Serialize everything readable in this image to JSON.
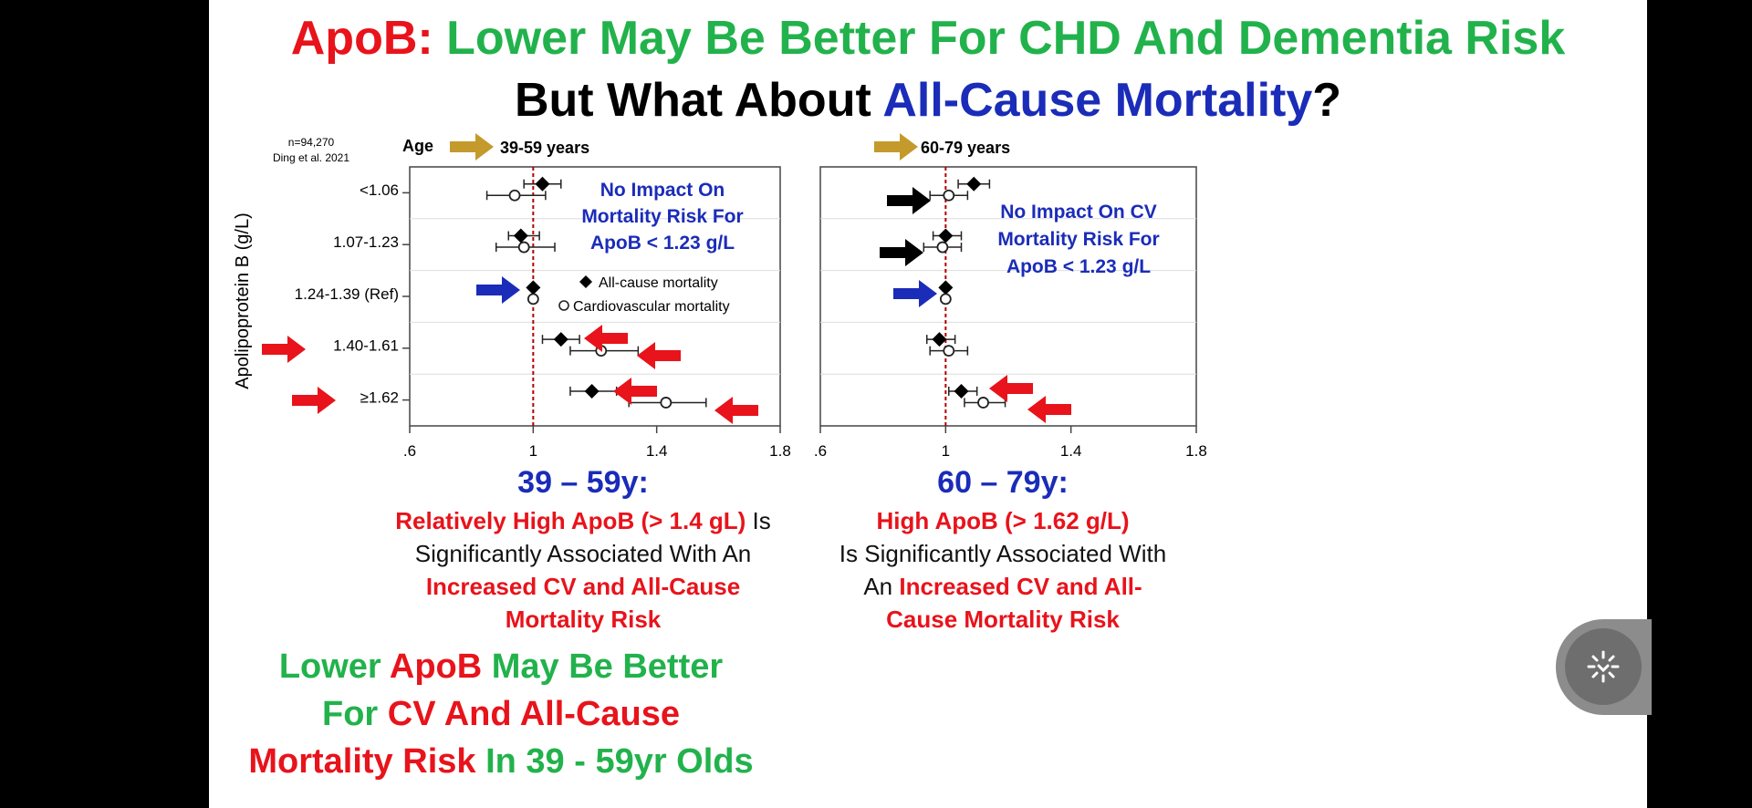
{
  "title": {
    "line1_part1": "ApoB:",
    "line1_part2": "Lower May Be Better For CHD And Dementia Risk",
    "line2_part1": "But What About",
    "line2_part2": "All-Cause Mortality",
    "line2_part3": "?"
  },
  "colors": {
    "red": "#e8131b",
    "green": "#22b24c",
    "blue": "#1a2cb8",
    "gold": "#c49a2c"
  },
  "study_note": {
    "n": "n=94,270",
    "ref": "Ding et al. 2021"
  },
  "age_label": "Age",
  "ylabel": "Apolipoprotein B (g/L)",
  "row_labels": [
    "<1.06",
    "1.07-1.23",
    "1.24-1.39 (Ref)",
    "1.40-1.61",
    "≥1.62"
  ],
  "legend": {
    "allcause": "All-cause mortality",
    "cv": "Cardiovascular mortality"
  },
  "chart_data": [
    {
      "type": "scatter",
      "title": "39-59 years",
      "categories": [
        "<1.06",
        "1.07-1.23",
        "1.24-1.39 (Ref)",
        "1.40-1.61",
        "≥1.62"
      ],
      "series": [
        {
          "name": "All-cause mortality",
          "marker": "filled-diamond",
          "values": [
            1.03,
            0.96,
            1.0,
            1.09,
            1.19
          ],
          "ci_low": [
            0.97,
            0.92,
            1.0,
            1.03,
            1.12
          ],
          "ci_high": [
            1.09,
            1.02,
            1.0,
            1.15,
            1.27
          ]
        },
        {
          "name": "Cardiovascular mortality",
          "marker": "open-circle",
          "values": [
            0.94,
            0.97,
            1.0,
            1.22,
            1.43
          ],
          "ci_low": [
            0.85,
            0.88,
            1.0,
            1.12,
            1.31
          ],
          "ci_high": [
            1.04,
            1.07,
            1.0,
            1.34,
            1.56
          ]
        }
      ],
      "xlim": [
        0.6,
        1.8
      ],
      "xticks": [
        ".6",
        "1",
        "1.4",
        "1.8"
      ],
      "reference_line": 1,
      "annotation": "No Impact On Mortality Risk For ApoB < 1.23 g/L"
    },
    {
      "type": "scatter",
      "title": "60-79 years",
      "categories": [
        "<1.06",
        "1.07-1.23",
        "1.24-1.39 (Ref)",
        "1.40-1.61",
        "≥1.62"
      ],
      "series": [
        {
          "name": "All-cause mortality",
          "marker": "filled-diamond",
          "values": [
            1.09,
            1.0,
            1.0,
            0.98,
            1.05
          ],
          "ci_low": [
            1.04,
            0.96,
            1.0,
            0.94,
            1.01
          ],
          "ci_high": [
            1.14,
            1.05,
            1.0,
            1.03,
            1.1
          ]
        },
        {
          "name": "Cardiovascular mortality",
          "marker": "open-circle",
          "values": [
            1.01,
            0.99,
            1.0,
            1.01,
            1.12
          ],
          "ci_low": [
            0.95,
            0.93,
            1.0,
            0.95,
            1.06
          ],
          "ci_high": [
            1.07,
            1.05,
            1.0,
            1.07,
            1.19
          ]
        }
      ],
      "xlim": [
        0.6,
        1.8
      ],
      "xticks": [
        ".6",
        "1",
        "1.4",
        "1.8"
      ],
      "reference_line": 1,
      "annotation": "No Impact On CV Mortality Risk For ApoB < 1.23 g/L"
    }
  ],
  "annotation_left": {
    "l1": "No Impact On",
    "l2": "Mortality Risk For",
    "l3": "ApoB < 1.23 g/L"
  },
  "annotation_right": {
    "l1": "No Impact On CV",
    "l2": "Mortality Risk For",
    "l3": "ApoB < 1.23 g/L"
  },
  "caption_left": {
    "head": "39 – 59y:",
    "l1_red": "Relatively High ApoB (> 1.4 gL)",
    "l1_plain": " Is",
    "l2": "Significantly Associated With An",
    "l3": "Increased CV and All-Cause",
    "l4": "Mortality Risk"
  },
  "caption_right": {
    "head": "60 – 79y:",
    "l1": "High ApoB (> 1.62 g/L)",
    "l2": "Is Significantly Associated With",
    "l3_plain": "An ",
    "l3_red": "Increased CV and All-",
    "l4": "Cause Mortality Risk"
  },
  "bottom": {
    "l1a": "Lower ",
    "l1b": "ApoB",
    "l1c": " May Be Better",
    "l2a": "For ",
    "l2b": "CV And All-Cause",
    "l3a": "Mortality Risk",
    "l3b": " In 39 - 59yr Olds"
  },
  "fab_icon": "sparkle-download-icon"
}
